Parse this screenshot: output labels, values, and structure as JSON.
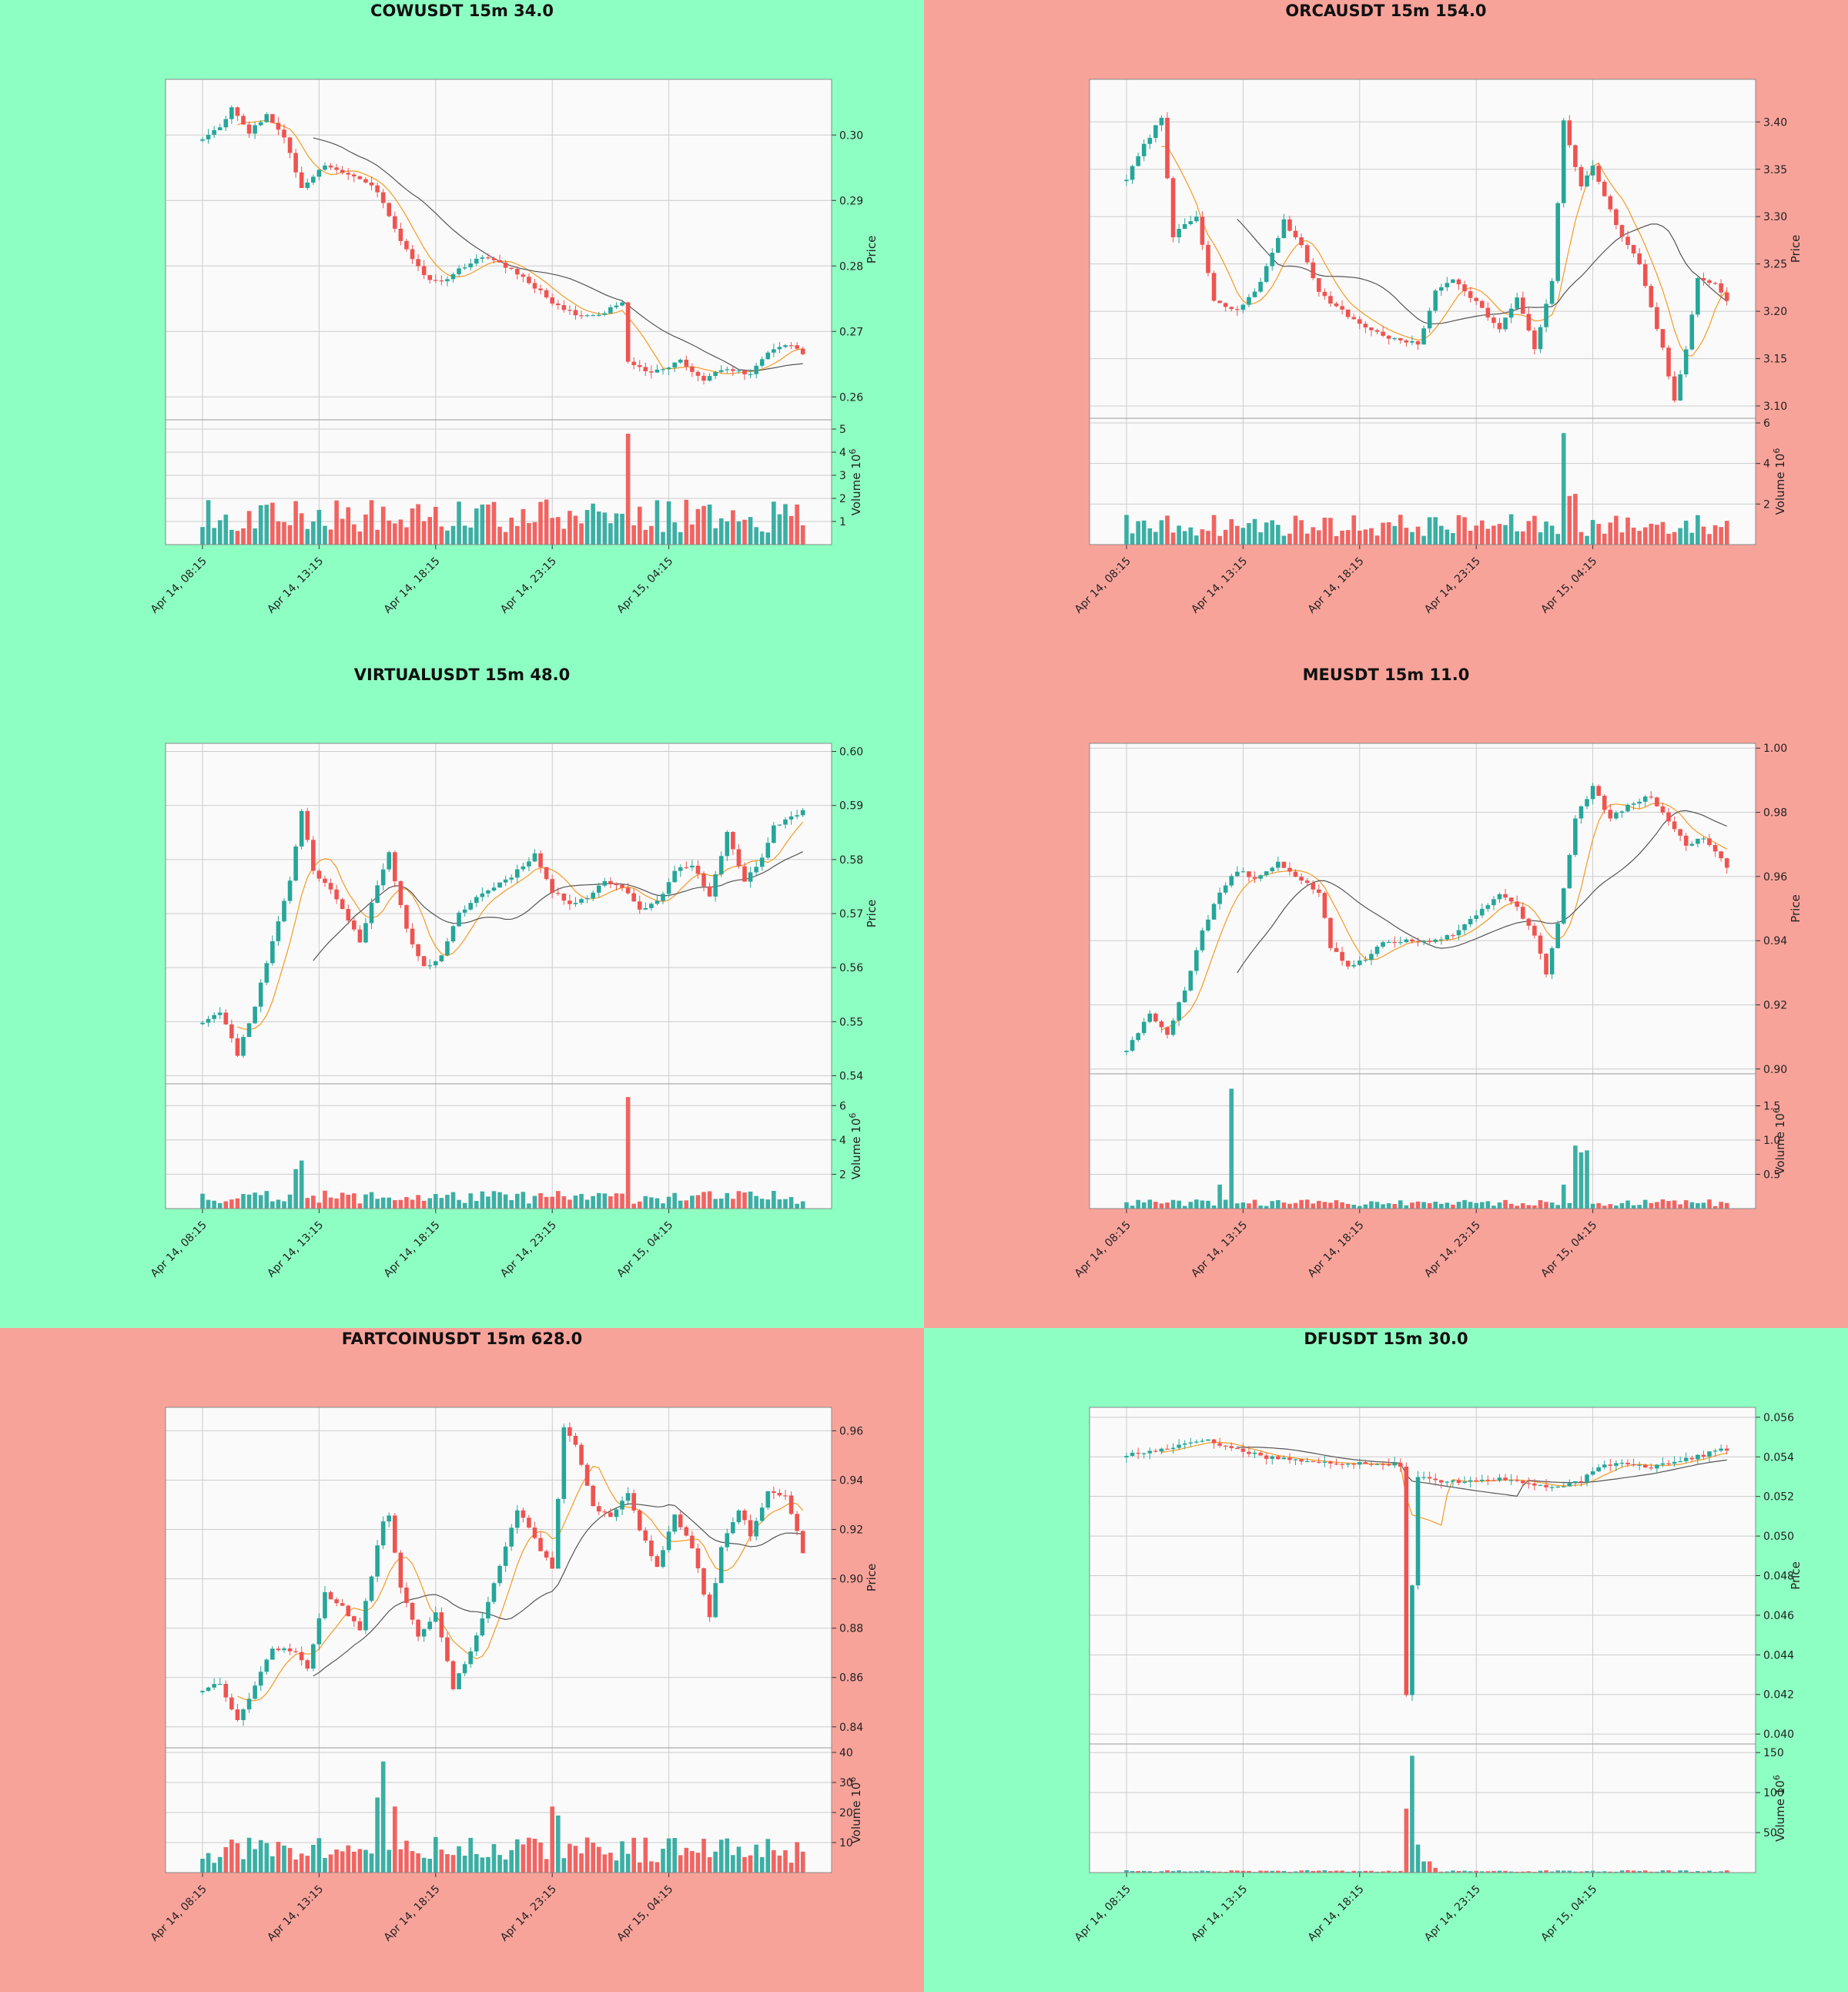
{
  "theme": {
    "up": "#26a69a",
    "down": "#ef5350",
    "up_bg": "#8effc2",
    "down_bg": "#f8a39a",
    "ma_fast": "#f59a23",
    "ma_slow": "#555555",
    "plot_bg": "#fafafa"
  },
  "labels": {
    "price": "Price",
    "volume": "Volume  10",
    "volume_exp": "6"
  },
  "x_ticks": [
    "Apr 14, 08:15",
    "Apr 14, 13:15",
    "Apr 14, 18:15",
    "Apr 14, 23:15",
    "Apr 15, 04:15"
  ],
  "chart_data": [
    {
      "type": "candlestick",
      "title": "COWUSDT 15m 34.0",
      "bg": "up",
      "ylim": [
        0.2565,
        0.3085
      ],
      "y_ticks": [
        0.26,
        0.27,
        0.28,
        0.29,
        0.3
      ],
      "vol_ylim": [
        0,
        5.2
      ],
      "vol_ticks": [
        1,
        2,
        3,
        4,
        5
      ],
      "anchors": [
        [
          0,
          0.2995
        ],
        [
          3,
          0.301
        ],
        [
          5,
          0.304
        ],
        [
          8,
          0.3005
        ],
        [
          11,
          0.303
        ],
        [
          14,
          0.2995
        ],
        [
          17,
          0.292
        ],
        [
          21,
          0.2955
        ],
        [
          26,
          0.2935
        ],
        [
          30,
          0.2915
        ],
        [
          34,
          0.284
        ],
        [
          38,
          0.2785
        ],
        [
          41,
          0.2775
        ],
        [
          45,
          0.28
        ],
        [
          48,
          0.2815
        ],
        [
          52,
          0.28
        ],
        [
          56,
          0.2775
        ],
        [
          60,
          0.2745
        ],
        [
          64,
          0.2725
        ],
        [
          68,
          0.2725
        ],
        [
          72,
          0.2745
        ],
        [
          73,
          0.2655
        ],
        [
          77,
          0.2635
        ],
        [
          82,
          0.2655
        ],
        [
          86,
          0.2625
        ],
        [
          90,
          0.2645
        ],
        [
          94,
          0.2635
        ],
        [
          98,
          0.2675
        ],
        [
          101,
          0.268
        ],
        [
          104,
          0.2655
        ],
        [
          106,
          0.2645
        ]
      ],
      "spikes": [
        [
          73,
          4.8
        ]
      ],
      "vol_base": 1.3,
      "seed": 3
    },
    {
      "type": "candlestick",
      "title": "ORCAUSDT 15m 154.0",
      "bg": "down",
      "ylim": [
        3.087,
        3.445
      ],
      "y_ticks": [
        3.1,
        3.15,
        3.2,
        3.25,
        3.3,
        3.35,
        3.4
      ],
      "vol_ylim": [
        0,
        6
      ],
      "vol_ticks": [
        2,
        4,
        6
      ],
      "anchors": [
        [
          0,
          3.34
        ],
        [
          3,
          3.375
        ],
        [
          6,
          3.405
        ],
        [
          8,
          3.28
        ],
        [
          12,
          3.3
        ],
        [
          15,
          3.21
        ],
        [
          19,
          3.2
        ],
        [
          23,
          3.23
        ],
        [
          27,
          3.295
        ],
        [
          30,
          3.27
        ],
        [
          33,
          3.22
        ],
        [
          38,
          3.195
        ],
        [
          42,
          3.18
        ],
        [
          46,
          3.17
        ],
        [
          50,
          3.165
        ],
        [
          53,
          3.22
        ],
        [
          56,
          3.235
        ],
        [
          60,
          3.21
        ],
        [
          64,
          3.18
        ],
        [
          67,
          3.215
        ],
        [
          70,
          3.16
        ],
        [
          73,
          3.23
        ],
        [
          75,
          3.4
        ],
        [
          78,
          3.33
        ],
        [
          80,
          3.355
        ],
        [
          84,
          3.29
        ],
        [
          88,
          3.25
        ],
        [
          92,
          3.16
        ],
        [
          94,
          3.105
        ],
        [
          96,
          3.16
        ],
        [
          98,
          3.235
        ],
        [
          101,
          3.23
        ],
        [
          103,
          3.21
        ]
      ],
      "spikes": [
        [
          75,
          5.5
        ],
        [
          76,
          2.4
        ],
        [
          77,
          2.5
        ]
      ],
      "vol_base": 1.0,
      "seed": 7
    },
    {
      "type": "candlestick",
      "title": "VIRTUALUSDT 15m 48.0",
      "bg": "up",
      "ylim": [
        0.5385,
        0.6015
      ],
      "y_ticks": [
        0.54,
        0.55,
        0.56,
        0.57,
        0.58,
        0.59,
        0.6
      ],
      "vol_ylim": [
        0,
        7
      ],
      "vol_ticks": [
        2,
        4,
        6
      ],
      "anchors": [
        [
          0,
          0.55
        ],
        [
          3,
          0.552
        ],
        [
          6,
          0.544
        ],
        [
          9,
          0.553
        ],
        [
          12,
          0.565
        ],
        [
          15,
          0.576
        ],
        [
          17,
          0.589
        ],
        [
          19,
          0.578
        ],
        [
          23,
          0.573
        ],
        [
          27,
          0.565
        ],
        [
          30,
          0.575
        ],
        [
          32,
          0.581
        ],
        [
          35,
          0.567
        ],
        [
          38,
          0.56
        ],
        [
          41,
          0.562
        ],
        [
          44,
          0.57
        ],
        [
          47,
          0.573
        ],
        [
          50,
          0.575
        ],
        [
          53,
          0.577
        ],
        [
          57,
          0.581
        ],
        [
          60,
          0.574
        ],
        [
          63,
          0.572
        ],
        [
          66,
          0.573
        ],
        [
          69,
          0.576
        ],
        [
          72,
          0.575
        ],
        [
          75,
          0.571
        ],
        [
          78,
          0.572
        ],
        [
          81,
          0.578
        ],
        [
          84,
          0.579
        ],
        [
          87,
          0.573
        ],
        [
          90,
          0.585
        ],
        [
          93,
          0.576
        ],
        [
          96,
          0.58
        ],
        [
          98,
          0.586
        ],
        [
          101,
          0.588
        ],
        [
          103,
          0.589
        ]
      ],
      "spikes": [
        [
          73,
          6.5
        ],
        [
          17,
          2.8
        ],
        [
          16,
          2.3
        ]
      ],
      "vol_base": 0.7,
      "seed": 11
    },
    {
      "type": "candlestick",
      "title": "MEUSDT 15m 11.0",
      "bg": "down",
      "ylim": [
        0.8985,
        1.0015
      ],
      "y_ticks": [
        0.9,
        0.92,
        0.94,
        0.96,
        0.98,
        1.0
      ],
      "vol_ylim": [
        0,
        1.9
      ],
      "vol_ticks": [
        0.5,
        1.0,
        1.5
      ],
      "anchors": [
        [
          0,
          0.906
        ],
        [
          4,
          0.917
        ],
        [
          7,
          0.911
        ],
        [
          10,
          0.925
        ],
        [
          13,
          0.943
        ],
        [
          16,
          0.955
        ],
        [
          19,
          0.962
        ],
        [
          22,
          0.959
        ],
        [
          26,
          0.964
        ],
        [
          30,
          0.959
        ],
        [
          33,
          0.955
        ],
        [
          35,
          0.938
        ],
        [
          38,
          0.932
        ],
        [
          41,
          0.934
        ],
        [
          44,
          0.94
        ],
        [
          48,
          0.94
        ],
        [
          52,
          0.94
        ],
        [
          56,
          0.942
        ],
        [
          60,
          0.948
        ],
        [
          64,
          0.955
        ],
        [
          67,
          0.95
        ],
        [
          70,
          0.942
        ],
        [
          72,
          0.93
        ],
        [
          74,
          0.945
        ],
        [
          77,
          0.978
        ],
        [
          80,
          0.988
        ],
        [
          83,
          0.978
        ],
        [
          87,
          0.983
        ],
        [
          90,
          0.985
        ],
        [
          93,
          0.977
        ],
        [
          96,
          0.97
        ],
        [
          99,
          0.972
        ],
        [
          101,
          0.968
        ],
        [
          103,
          0.963
        ]
      ],
      "spikes": [
        [
          18,
          1.75
        ],
        [
          77,
          0.92
        ],
        [
          78,
          0.82
        ],
        [
          79,
          0.85
        ],
        [
          16,
          0.35
        ],
        [
          75,
          0.35
        ]
      ],
      "vol_base": 0.09,
      "seed": 5
    },
    {
      "type": "candlestick",
      "title": "FARTCOINUSDT 15m 628.0",
      "bg": "down",
      "ylim": [
        0.8315,
        0.9695
      ],
      "y_ticks": [
        0.84,
        0.86,
        0.88,
        0.9,
        0.92,
        0.94,
        0.96
      ],
      "vol_ylim": [
        0,
        40
      ],
      "vol_ticks": [
        10,
        20,
        30,
        40
      ],
      "anchors": [
        [
          0,
          0.855
        ],
        [
          3,
          0.858
        ],
        [
          6,
          0.842
        ],
        [
          9,
          0.857
        ],
        [
          12,
          0.872
        ],
        [
          16,
          0.87
        ],
        [
          18,
          0.864
        ],
        [
          21,
          0.894
        ],
        [
          24,
          0.889
        ],
        [
          27,
          0.879
        ],
        [
          31,
          0.924
        ],
        [
          32,
          0.925
        ],
        [
          34,
          0.897
        ],
        [
          37,
          0.876
        ],
        [
          40,
          0.886
        ],
        [
          43,
          0.856
        ],
        [
          46,
          0.871
        ],
        [
          50,
          0.898
        ],
        [
          54,
          0.928
        ],
        [
          57,
          0.916
        ],
        [
          60,
          0.904
        ],
        [
          62,
          0.962
        ],
        [
          64,
          0.954
        ],
        [
          67,
          0.929
        ],
        [
          70,
          0.925
        ],
        [
          73,
          0.934
        ],
        [
          75,
          0.92
        ],
        [
          78,
          0.904
        ],
        [
          81,
          0.926
        ],
        [
          84,
          0.913
        ],
        [
          87,
          0.885
        ],
        [
          89,
          0.913
        ],
        [
          92,
          0.928
        ],
        [
          94,
          0.918
        ],
        [
          97,
          0.935
        ],
        [
          100,
          0.934
        ],
        [
          103,
          0.911
        ]
      ],
      "spikes": [
        [
          31,
          37
        ],
        [
          30,
          25
        ],
        [
          33,
          22
        ],
        [
          60,
          22
        ],
        [
          61,
          19
        ]
      ],
      "vol_base": 8.0,
      "seed": 13
    },
    {
      "type": "candlestick",
      "title": "DFUSDT 15m 30.0",
      "bg": "up",
      "ylim": [
        0.0395,
        0.0565
      ],
      "y_ticks": [
        0.04,
        0.042,
        0.044,
        0.046,
        0.048,
        0.05,
        0.052,
        0.054,
        0.056
      ],
      "vol_ylim": [
        0,
        155
      ],
      "vol_ticks": [
        50,
        100,
        150
      ],
      "anchors": [
        [
          0,
          0.0541
        ],
        [
          5,
          0.0543
        ],
        [
          9,
          0.0546
        ],
        [
          13,
          0.0549
        ],
        [
          16,
          0.0546
        ],
        [
          20,
          0.0543
        ],
        [
          24,
          0.054
        ],
        [
          28,
          0.0539
        ],
        [
          32,
          0.0537
        ],
        [
          36,
          0.0537
        ],
        [
          42,
          0.0537
        ],
        [
          47,
          0.0536
        ],
        [
          48,
          0.042
        ],
        [
          50,
          0.053
        ],
        [
          54,
          0.0527
        ],
        [
          58,
          0.0528
        ],
        [
          62,
          0.0529
        ],
        [
          66,
          0.0528
        ],
        [
          70,
          0.0526
        ],
        [
          74,
          0.0524
        ],
        [
          78,
          0.0528
        ],
        [
          82,
          0.0536
        ],
        [
          86,
          0.0537
        ],
        [
          90,
          0.0535
        ],
        [
          94,
          0.0538
        ],
        [
          98,
          0.054
        ],
        [
          102,
          0.0544
        ]
      ],
      "spikes": [
        [
          48,
          80
        ],
        [
          49,
          146
        ],
        [
          50,
          35
        ],
        [
          51,
          14
        ],
        [
          52,
          14
        ],
        [
          53,
          6
        ]
      ],
      "vol_base": 2.0,
      "seed": 17
    }
  ]
}
